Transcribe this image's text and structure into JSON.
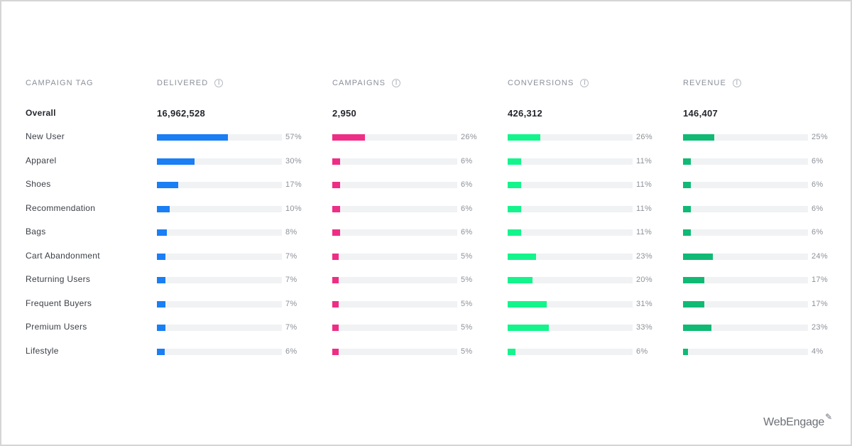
{
  "colors": {
    "delivered": "#1a7ef5",
    "campaigns": "#ee2e86",
    "conversions": "#14f48c",
    "revenue": "#10ba74",
    "track": "#f1f2f4"
  },
  "header": {
    "campaign_tag": "CAMPAIGN TAG",
    "columns": [
      {
        "key": "delivered",
        "label": "DELIVERED",
        "info_icon": "info-icon"
      },
      {
        "key": "campaigns",
        "label": "CAMPAIGNS",
        "info_icon": "info-icon"
      },
      {
        "key": "conversions",
        "label": "CONVERSIONS",
        "info_icon": "info-icon"
      },
      {
        "key": "revenue",
        "label": "REVENUE",
        "info_icon": "info-icon"
      }
    ]
  },
  "overall": {
    "label": "Overall",
    "totals": [
      "16,962,528",
      "2,950",
      "426,312",
      "146,407"
    ]
  },
  "rows": [
    {
      "label": "New User",
      "values": [
        57,
        26,
        26,
        25
      ]
    },
    {
      "label": "Apparel",
      "values": [
        30,
        6,
        11,
        6
      ]
    },
    {
      "label": "Shoes",
      "values": [
        17,
        6,
        11,
        6
      ]
    },
    {
      "label": "Recommendation",
      "values": [
        10,
        6,
        11,
        6
      ]
    },
    {
      "label": "Bags",
      "values": [
        8,
        6,
        11,
        6
      ]
    },
    {
      "label": "Cart Abandonment",
      "values": [
        7,
        5,
        23,
        24
      ]
    },
    {
      "label": "Returning Users",
      "values": [
        7,
        5,
        20,
        17
      ]
    },
    {
      "label": "Frequent Buyers",
      "values": [
        7,
        5,
        31,
        17
      ]
    },
    {
      "label": "Premium Users",
      "values": [
        7,
        5,
        33,
        23
      ]
    },
    {
      "label": "Lifestyle",
      "values": [
        6,
        5,
        6,
        4
      ]
    }
  ],
  "logo": {
    "text": "WebEngage",
    "mark_icon": "webengage-mark-icon"
  }
}
